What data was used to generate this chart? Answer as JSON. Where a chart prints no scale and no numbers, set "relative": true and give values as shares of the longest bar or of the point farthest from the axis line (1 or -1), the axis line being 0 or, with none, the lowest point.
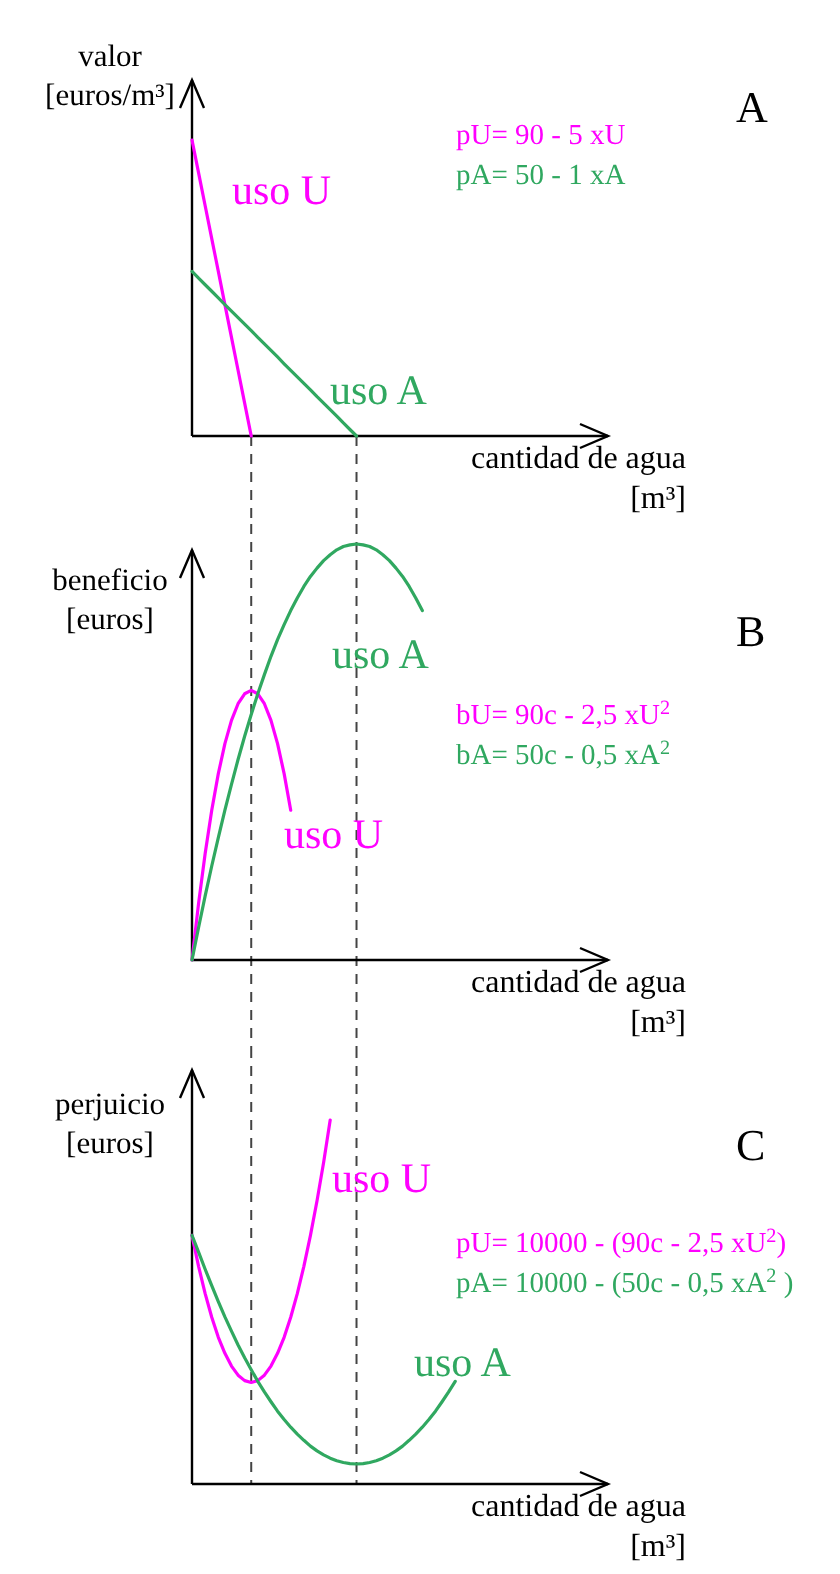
{
  "chart_data": [
    {
      "type": "line",
      "relative": true,
      "ylabel": "valor\n[euros/m³]",
      "xlabel": "cantidad de agua\n[m³]",
      "categories": [
        null,
        null,
        null,
        null,
        null,
        null,
        null,
        null,
        null,
        null,
        null,
        null,
        null,
        null,
        null,
        null,
        null,
        null,
        null,
        null,
        null,
        null,
        null,
        null,
        null,
        null,
        null,
        null,
        null,
        null,
        null,
        null,
        null,
        null,
        null,
        null,
        null,
        null,
        null,
        null,
        null,
        null,
        null,
        null,
        null,
        null,
        null,
        null,
        null,
        null,
        null,
        null,
        null,
        null,
        null,
        null,
        null,
        null,
        null,
        null,
        null,
        null,
        null
      ],
      "series": [
        {
          "name": "uso U",
          "color": "#ff00ff",
          "values": [
            1,
            0.889,
            0.778,
            0.667,
            0.556,
            0.444,
            0.333,
            0.222,
            0.111,
            0,
            null,
            null,
            null,
            null,
            null,
            null,
            null,
            null,
            null,
            null,
            null,
            null,
            null,
            null,
            null,
            null,
            null,
            null,
            null,
            null,
            null,
            null,
            null,
            null,
            null,
            null,
            null,
            null,
            null,
            null,
            null,
            null,
            null,
            null,
            null,
            null,
            null,
            null,
            null,
            null,
            null,
            null,
            null,
            null,
            null,
            null,
            null,
            null,
            null,
            null,
            null,
            null,
            null
          ]
        },
        {
          "name": "uso A",
          "color": "#30a860",
          "values": [
            0.556,
            0.533,
            0.511,
            0.489,
            0.467,
            0.444,
            0.422,
            0.4,
            0.378,
            0.356,
            0.333,
            0.311,
            0.289,
            0.267,
            0.244,
            0.222,
            0.2,
            0.178,
            0.156,
            0.133,
            0.111,
            0.089,
            0.067,
            0.044,
            0.022,
            0,
            null,
            null,
            null,
            null,
            null,
            null,
            null,
            null,
            null,
            null,
            null,
            null,
            null,
            null,
            null,
            null,
            null,
            null,
            null,
            null,
            null,
            null,
            null,
            null,
            null,
            null,
            null,
            null,
            null,
            null,
            null,
            null,
            null,
            null,
            null,
            null,
            null
          ]
        }
      ],
      "annotations": [
        "A",
        "pU= 90 - 5 xU",
        "pA= 50 - 1 xA"
      ]
    },
    {
      "type": "line",
      "relative": true,
      "ylabel": "beneficio\n[euros]",
      "xlabel": "cantidad de agua\n[m³]",
      "categories": [
        null,
        null,
        null,
        null,
        null,
        null,
        null,
        null,
        null,
        null,
        null,
        null,
        null,
        null,
        null,
        null,
        null,
        null,
        null,
        null,
        null,
        null,
        null,
        null,
        null,
        null,
        null,
        null,
        null,
        null,
        null,
        null,
        null,
        null,
        null,
        null,
        null,
        null,
        null,
        null,
        null,
        null,
        null,
        null,
        null,
        null,
        null,
        null,
        null,
        null,
        null,
        null,
        null,
        null,
        null,
        null,
        null,
        null,
        null,
        null,
        null,
        null,
        null
      ],
      "series": [
        {
          "name": "uso U",
          "color": "#ff00ff",
          "values": [
            0,
            0.136,
            0.256,
            0.36,
            0.448,
            0.52,
            0.576,
            0.616,
            0.64,
            0.648,
            0.64,
            0.616,
            0.576,
            0.52,
            0.448,
            0.36,
            null,
            null,
            null,
            null,
            null,
            null,
            null,
            null,
            null,
            null,
            null,
            null,
            null,
            null,
            null,
            null,
            null,
            null,
            null,
            null,
            null,
            null,
            null,
            null,
            null,
            null,
            null,
            null,
            null,
            null,
            null,
            null,
            null,
            null,
            null,
            null,
            null,
            null,
            null,
            null,
            null,
            null,
            null,
            null,
            null,
            null,
            null
          ]
        },
        {
          "name": "uso A",
          "color": "#30a860",
          "values": [
            0,
            0.078,
            0.154,
            0.226,
            0.294,
            0.36,
            0.422,
            0.482,
            0.538,
            0.59,
            0.64,
            0.686,
            0.73,
            0.77,
            0.806,
            0.84,
            0.87,
            0.898,
            0.922,
            0.942,
            0.96,
            0.974,
            0.986,
            0.994,
            0.998,
            1,
            0.998,
            0.994,
            0.986,
            0.974,
            0.96,
            0.942,
            0.922,
            0.898,
            0.87,
            0.84,
            null,
            null,
            null,
            null,
            null,
            null,
            null,
            null,
            null,
            null,
            null,
            null,
            null,
            null,
            null,
            null,
            null,
            null,
            null,
            null,
            null,
            null,
            null,
            null,
            null,
            null,
            null
          ]
        }
      ],
      "annotations": [
        "B",
        "bU= 90c - 2,5 xU$^{2}$",
        "bA= 50c - 0,5 xA$^{2}$"
      ]
    },
    {
      "type": "line",
      "relative": true,
      "ylabel": "perjuicio\n[euros]",
      "xlabel": "cantidad de agua\n[m³]",
      "categories": [
        null,
        null,
        null,
        null,
        null,
        null,
        null,
        null,
        null,
        null,
        null,
        null,
        null,
        null,
        null,
        null,
        null,
        null,
        null,
        null,
        null,
        null,
        null,
        null,
        null,
        null,
        null,
        null,
        null,
        null,
        null,
        null,
        null,
        null,
        null,
        null,
        null,
        null,
        null,
        null,
        null,
        null,
        null,
        null,
        null,
        null,
        null,
        null,
        null,
        null,
        null,
        null,
        null,
        null,
        null,
        null,
        null,
        null,
        null,
        null,
        null,
        null,
        null
      ],
      "series": [
        {
          "name": "uso U",
          "color": "#ff00ff",
          "values": [
            0.683,
            0.598,
            0.523,
            0.458,
            0.403,
            0.359,
            0.324,
            0.299,
            0.284,
            0.279,
            0.284,
            0.299,
            0.324,
            0.359,
            0.403,
            0.458,
            0.523,
            0.598,
            0.683,
            0.778,
            0.883,
            1,
            null,
            null,
            null,
            null,
            null,
            null,
            null,
            null,
            null,
            null,
            null,
            null,
            null,
            null,
            null,
            null,
            null,
            null,
            null,
            null,
            null,
            null,
            null,
            null,
            null,
            null,
            null,
            null,
            null,
            null,
            null,
            null,
            null,
            null,
            null,
            null,
            null,
            null,
            null,
            null,
            null
          ]
        },
        {
          "name": "uso A",
          "color": "#30a860",
          "values": [
            0.683,
            0.637,
            0.59,
            0.545,
            0.501,
            0.459,
            0.42,
            0.382,
            0.347,
            0.314,
            0.282,
            0.253,
            0.226,
            0.2,
            0.177,
            0.156,
            0.137,
            0.12,
            0.104,
            0.091,
            0.08,
            0.071,
            0.064,
            0.059,
            0.056,
            0.055,
            0.056,
            0.059,
            0.064,
            0.071,
            0.08,
            0.091,
            0.104,
            0.12,
            0.137,
            0.156,
            0.177,
            0.2,
            0.226,
            0.253,
            0.282,
            null,
            null,
            null,
            null,
            null,
            null,
            null,
            null,
            null,
            null,
            null,
            null,
            null,
            null,
            null,
            null,
            null,
            null,
            null,
            null,
            null,
            null
          ]
        }
      ],
      "annotations": [
        "C",
        "pU= 10000 - (90c - 2,5 xU$^{2}$)",
        "pA= 10000 - (50c - 0,5 xA$^{2}$ )"
      ]
    }
  ]
}
